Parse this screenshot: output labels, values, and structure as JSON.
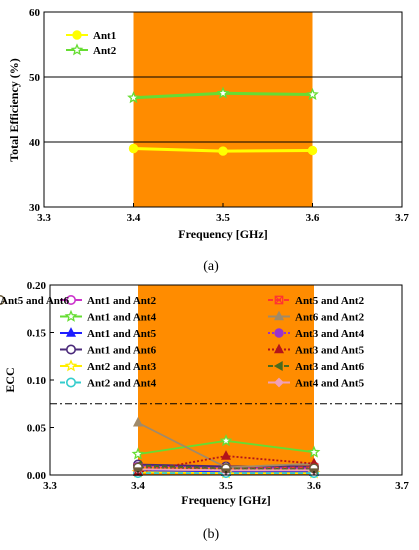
{
  "chart_data": [
    {
      "type": "line",
      "panel_label": "(a)",
      "xlabel": "Frequency [GHz]",
      "ylabel": "Total Efficiency (%)",
      "xlim": [
        3.3,
        3.7
      ],
      "ylim": [
        30,
        60
      ],
      "xticks": [
        "3.3",
        "3.4",
        "3.5",
        "3.6",
        "3.7"
      ],
      "yticks": [
        "30",
        "40",
        "50",
        "60"
      ],
      "shaded_band": {
        "x0": 3.4,
        "x1": 3.6,
        "color": "#ff8c00"
      },
      "reference_lines": [
        {
          "y": 40
        },
        {
          "y": 50
        }
      ],
      "legend_position": "top-left",
      "x": [
        3.4,
        3.5,
        3.6
      ],
      "series": [
        {
          "name": "Ant1",
          "values": [
            39.0,
            38.6,
            38.7
          ],
          "color": "#ffff00",
          "marker": "circle",
          "dash": "solid"
        },
        {
          "name": "Ant2",
          "values": [
            46.8,
            47.5,
            47.3
          ],
          "color": "#66dd33",
          "marker": "star",
          "dash": "solid"
        }
      ]
    },
    {
      "type": "line",
      "panel_label": "(b)",
      "xlabel": "Frequency [GHz]",
      "ylabel": "ECC",
      "xlim": [
        3.3,
        3.7
      ],
      "ylim": [
        0,
        0.2
      ],
      "xticks": [
        "3.3",
        "3.4",
        "3.5",
        "3.6",
        "3.7"
      ],
      "yticks": [
        "0.00",
        "0.05",
        "0.10",
        "0.15",
        "0.20"
      ],
      "shaded_band": {
        "x0": 3.4,
        "x1": 3.6,
        "color": "#ff8c00"
      },
      "reference_lines": [
        {
          "y": 0.075
        }
      ],
      "legend_position": "top, two columns",
      "x": [
        3.4,
        3.5,
        3.6
      ],
      "series": [
        {
          "name": "Ant1 and Ant2",
          "values": [
            0.01,
            0.008,
            0.007
          ],
          "color": "#cc33cc",
          "marker": "circle-open",
          "dash": "solid"
        },
        {
          "name": "Ant1 and Ant4",
          "values": [
            0.022,
            0.036,
            0.024
          ],
          "color": "#66dd33",
          "marker": "star",
          "dash": "solid"
        },
        {
          "name": "Ant1 and Ant5",
          "values": [
            0.004,
            0.003,
            0.003
          ],
          "color": "#1f1fff",
          "marker": "triangle",
          "dash": "solid"
        },
        {
          "name": "Ant1 and Ant6",
          "values": [
            0.011,
            0.009,
            0.009
          ],
          "color": "#4b2a7a",
          "marker": "circle-open",
          "dash": "solid"
        },
        {
          "name": "Ant2 and Ant3",
          "values": [
            0.003,
            0.002,
            0.002
          ],
          "color": "#ffee00",
          "marker": "star",
          "dash": "solid"
        },
        {
          "name": "Ant2 and Ant4",
          "values": [
            0.002,
            0.002,
            0.002
          ],
          "color": "#33cccc",
          "marker": "circle-open",
          "dash": "dash"
        },
        {
          "name": "Ant5 and Ant2",
          "values": [
            0.008,
            0.007,
            0.008
          ],
          "color": "#ff3333",
          "marker": "square-x",
          "dash": "dash"
        },
        {
          "name": "Ant6 and Ant2",
          "values": [
            0.055,
            0.008,
            0.012
          ],
          "color": "#a08a6a",
          "marker": "triangle",
          "dash": "solid"
        },
        {
          "name": "Ant3 and Ant4",
          "values": [
            0.009,
            0.006,
            0.007
          ],
          "color": "#9933cc",
          "marker": "circle",
          "dash": "dot"
        },
        {
          "name": "Ant3 and Ant5",
          "values": [
            0.003,
            0.02,
            0.012
          ],
          "color": "#b3141b",
          "marker": "triangle",
          "dash": "dot"
        },
        {
          "name": "Ant3 and Ant6",
          "values": [
            0.01,
            0.007,
            0.006
          ],
          "color": "#4a6b1e",
          "marker": "triangle-left",
          "dash": "dash"
        },
        {
          "name": "Ant4 and Ant5",
          "values": [
            0.006,
            0.005,
            0.005
          ],
          "color": "#f0a0b8",
          "marker": "diamond",
          "dash": "solid"
        },
        {
          "name": "Ant5 and Ant6",
          "values": [
            0.008,
            0.007,
            0.007
          ],
          "color": "#6b5a3a",
          "marker": "circle-half",
          "dash": "dot"
        }
      ]
    }
  ]
}
